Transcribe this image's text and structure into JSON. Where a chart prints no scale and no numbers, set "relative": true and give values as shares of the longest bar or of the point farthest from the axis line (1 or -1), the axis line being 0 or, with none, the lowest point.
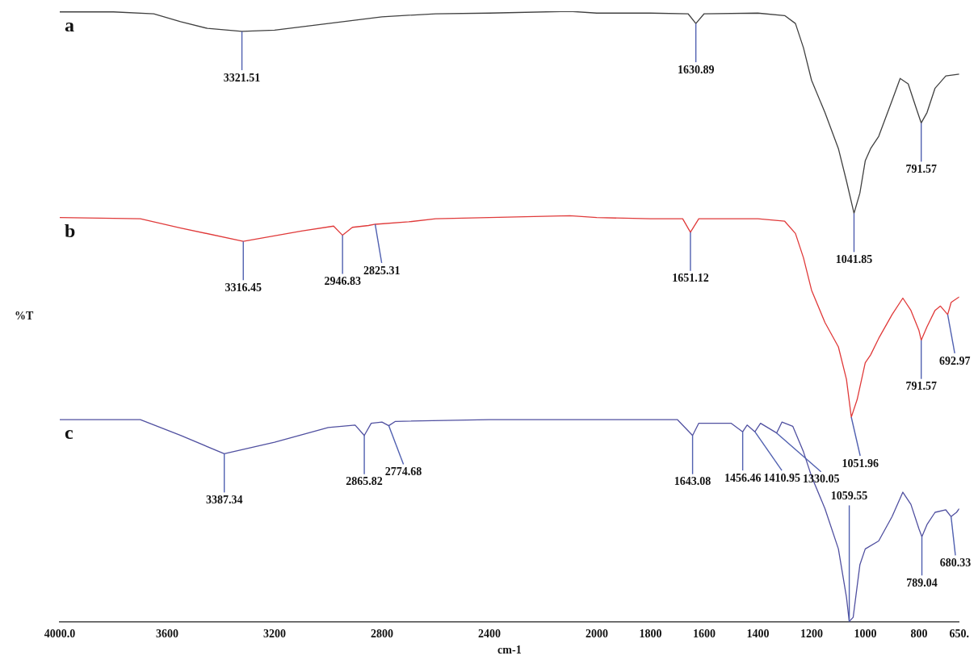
{
  "chart_data": {
    "type": "line",
    "relative": true,
    "xlabel": "cm-1",
    "ylabel": "%T",
    "legend": false,
    "grid": false,
    "tick_labels": "x",
    "marker": "none",
    "line_style": "solid",
    "xlim": [
      4000,
      650
    ],
    "xticks": [
      {
        "value": 4000,
        "label": "4000.0"
      },
      3600,
      3200,
      2800,
      2400,
      2000,
      1800,
      1600,
      1400,
      1200,
      1000,
      800,
      {
        "value": 650,
        "label": "650."
      }
    ],
    "series": [
      {
        "name": "a",
        "color": "#404040",
        "x": [
          4000,
          3800,
          3650,
          3550,
          3450,
          3321.51,
          3200,
          3000,
          2800,
          2600,
          2400,
          2100,
          2000,
          1800,
          1660,
          1630.89,
          1600,
          1400,
          1300,
          1260,
          1230,
          1200,
          1150,
          1100,
          1070,
          1041.85,
          1020,
          1000,
          980,
          950,
          900,
          870,
          840,
          810,
          791.57,
          770,
          740,
          700,
          650
        ],
        "values": [
          0.999,
          0.999,
          0.996,
          0.983,
          0.972,
          0.967,
          0.969,
          0.98,
          0.991,
          0.996,
          0.997,
          1.0,
          0.997,
          0.997,
          0.996,
          0.98,
          0.996,
          0.997,
          0.993,
          0.98,
          0.94,
          0.887,
          0.834,
          0.775,
          0.722,
          0.669,
          0.702,
          0.755,
          0.775,
          0.795,
          0.854,
          0.89,
          0.881,
          0.841,
          0.817,
          0.834,
          0.874,
          0.894,
          0.897
        ]
      },
      {
        "name": "b",
        "color": "#e03a3a",
        "x": [
          4000,
          3700,
          3550,
          3316.45,
          3100,
          2980,
          2946.83,
          2910,
          2850,
          2825.31,
          2700,
          2600,
          2400,
          2100,
          2000,
          1800,
          1680,
          1651.12,
          1620,
          1400,
          1300,
          1260,
          1230,
          1200,
          1150,
          1100,
          1070,
          1051.96,
          1030,
          1000,
          980,
          950,
          900,
          860,
          830,
          800,
          791.57,
          770,
          740,
          720,
          692.97,
          680,
          650
        ],
        "values": [
          0.662,
          0.66,
          0.645,
          0.623,
          0.64,
          0.648,
          0.633,
          0.646,
          0.649,
          0.651,
          0.655,
          0.66,
          0.662,
          0.665,
          0.662,
          0.66,
          0.66,
          0.638,
          0.66,
          0.66,
          0.656,
          0.636,
          0.596,
          0.543,
          0.49,
          0.45,
          0.397,
          0.335,
          0.364,
          0.424,
          0.437,
          0.464,
          0.503,
          0.53,
          0.51,
          0.477,
          0.461,
          0.483,
          0.51,
          0.517,
          0.503,
          0.523,
          0.532
        ]
      },
      {
        "name": "c",
        "color": "#5050a0",
        "x": [
          4000,
          3700,
          3550,
          3387.34,
          3200,
          3000,
          2900,
          2865.82,
          2840,
          2800,
          2774.68,
          2750,
          2400,
          2000,
          1700,
          1643.08,
          1620,
          1500,
          1456.46,
          1440,
          1410.95,
          1390,
          1330.05,
          1310,
          1270,
          1230,
          1200,
          1150,
          1100,
          1070,
          1059.55,
          1045,
          1020,
          1000,
          950,
          900,
          860,
          830,
          800,
          789.04,
          770,
          740,
          700,
          680.33,
          660,
          650
        ],
        "values": [
          0.331,
          0.331,
          0.305,
          0.275,
          0.294,
          0.318,
          0.322,
          0.305,
          0.325,
          0.327,
          0.321,
          0.328,
          0.331,
          0.331,
          0.331,
          0.305,
          0.325,
          0.325,
          0.311,
          0.322,
          0.311,
          0.325,
          0.309,
          0.327,
          0.32,
          0.278,
          0.238,
          0.185,
          0.119,
          0.04,
          0.0,
          0.007,
          0.093,
          0.119,
          0.132,
          0.172,
          0.212,
          0.192,
          0.152,
          0.139,
          0.159,
          0.179,
          0.183,
          0.172,
          0.179,
          0.185
        ]
      }
    ],
    "annotations": [
      {
        "text": "3321.51",
        "x": 3321.51,
        "y": 0.967
      },
      {
        "text": "1630.89",
        "x": 1630.89,
        "y": 0.98
      },
      {
        "text": "1041.85",
        "x": 1041.85,
        "y": 0.669
      },
      {
        "text": "791.57",
        "x": 791.57,
        "y": 0.817
      },
      {
        "text": "3316.45",
        "x": 3316.45,
        "y": 0.623
      },
      {
        "text": "2946.83",
        "x": 2946.83,
        "y": 0.633
      },
      {
        "text": "2825.31",
        "x": 2825.31,
        "y": 0.651
      },
      {
        "text": "1651.12",
        "x": 1651.12,
        "y": 0.638
      },
      {
        "text": "1051.96",
        "x": 1051.96,
        "y": 0.335
      },
      {
        "text": "791.57",
        "x": 791.57,
        "y": 0.461
      },
      {
        "text": "692.97",
        "x": 692.97,
        "y": 0.503
      },
      {
        "text": "3387.34",
        "x": 3387.34,
        "y": 0.275
      },
      {
        "text": "2865.82",
        "x": 2865.82,
        "y": 0.305
      },
      {
        "text": "2774.68",
        "x": 2774.68,
        "y": 0.321
      },
      {
        "text": "1643.08",
        "x": 1643.08,
        "y": 0.305
      },
      {
        "text": "1456.46",
        "x": 1456.46,
        "y": 0.311
      },
      {
        "text": "1410.95",
        "x": 1410.95,
        "y": 0.311
      },
      {
        "text": "1330.05",
        "x": 1330.05,
        "y": 0.309
      },
      {
        "text": "1059.55",
        "x": 1059.55,
        "y": 0.0
      },
      {
        "text": "789.04",
        "x": 789.04,
        "y": 0.139
      },
      {
        "text": "680.33",
        "x": 680.33,
        "y": 0.172
      }
    ]
  }
}
